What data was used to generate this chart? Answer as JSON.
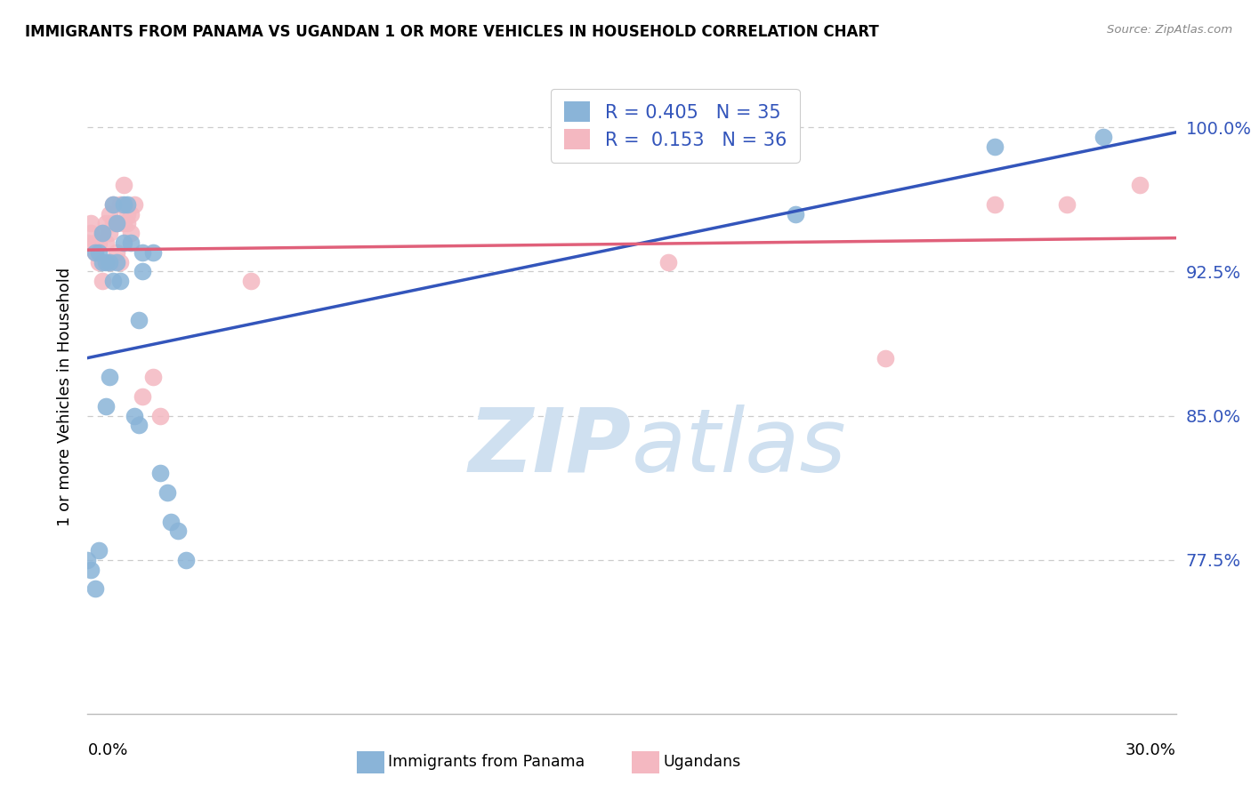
{
  "title": "IMMIGRANTS FROM PANAMA VS UGANDAN 1 OR MORE VEHICLES IN HOUSEHOLD CORRELATION CHART",
  "source": "Source: ZipAtlas.com",
  "ylabel": "1 or more Vehicles in Household",
  "legend1_label": "R = 0.405   N = 35",
  "legend2_label": "R =  0.153   N = 36",
  "blue_color": "#8ab4d8",
  "pink_color": "#f4b8c1",
  "trendline_blue": "#3355bb",
  "trendline_pink": "#e0607a",
  "blue_scatter_x": [
    0.0,
    0.001,
    0.002,
    0.002,
    0.003,
    0.004,
    0.004,
    0.005,
    0.005,
    0.006,
    0.006,
    0.007,
    0.007,
    0.008,
    0.008,
    0.009,
    0.01,
    0.01,
    0.011,
    0.012,
    0.013,
    0.014,
    0.014,
    0.015,
    0.015,
    0.018,
    0.02,
    0.022,
    0.023,
    0.025,
    0.027,
    0.195,
    0.25,
    0.28,
    0.003
  ],
  "blue_scatter_y": [
    0.775,
    0.77,
    0.76,
    0.935,
    0.78,
    0.93,
    0.945,
    0.93,
    0.855,
    0.93,
    0.87,
    0.96,
    0.92,
    0.93,
    0.95,
    0.92,
    0.96,
    0.94,
    0.96,
    0.94,
    0.85,
    0.845,
    0.9,
    0.925,
    0.935,
    0.935,
    0.82,
    0.81,
    0.795,
    0.79,
    0.775,
    0.955,
    0.99,
    0.995,
    0.935
  ],
  "pink_scatter_x": [
    0.0,
    0.001,
    0.001,
    0.002,
    0.002,
    0.003,
    0.003,
    0.004,
    0.004,
    0.005,
    0.005,
    0.006,
    0.006,
    0.006,
    0.007,
    0.007,
    0.008,
    0.008,
    0.009,
    0.009,
    0.01,
    0.01,
    0.011,
    0.011,
    0.012,
    0.012,
    0.013,
    0.015,
    0.018,
    0.02,
    0.045,
    0.16,
    0.22,
    0.25,
    0.27,
    0.29
  ],
  "pink_scatter_y": [
    0.94,
    0.95,
    0.945,
    0.94,
    0.935,
    0.94,
    0.93,
    0.945,
    0.92,
    0.95,
    0.94,
    0.93,
    0.945,
    0.955,
    0.95,
    0.96,
    0.95,
    0.935,
    0.93,
    0.96,
    0.95,
    0.97,
    0.955,
    0.95,
    0.945,
    0.955,
    0.96,
    0.86,
    0.87,
    0.85,
    0.92,
    0.93,
    0.88,
    0.96,
    0.96,
    0.97
  ],
  "xmin": 0.0,
  "xmax": 0.3,
  "ymin": 0.695,
  "ymax": 1.025,
  "ytick_positions": [
    1.0,
    0.925,
    0.85,
    0.775
  ],
  "ytick_labels": [
    "100.0%",
    "92.5%",
    "85.0%",
    "77.5%"
  ],
  "watermark_zip": "ZIP",
  "watermark_atlas": "atlas",
  "watermark_color": "#cfe0f0",
  "figwidth": 14.06,
  "figheight": 8.92,
  "dpi": 100
}
